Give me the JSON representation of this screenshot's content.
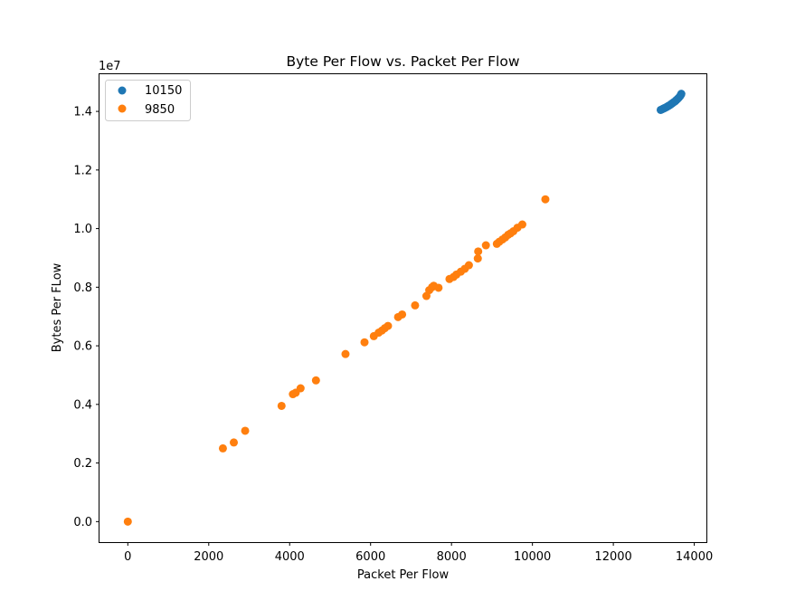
{
  "chart_data": {
    "type": "scatter",
    "title": "Byte Per Flow vs. Packet Per Flow",
    "xlabel": "Packet Per Flow",
    "ylabel": "Bytes Per FLow",
    "y_offset_label": "1e7",
    "y_scale_factor": 10000000,
    "xlim": [
      -700,
      14300
    ],
    "ylim": [
      -700000,
      15300000
    ],
    "xticks": [
      0,
      2000,
      4000,
      6000,
      8000,
      10000,
      12000,
      14000
    ],
    "xtick_labels": [
      "0",
      "2000",
      "4000",
      "6000",
      "8000",
      "10000",
      "12000",
      "14000"
    ],
    "yticks": [
      0,
      2000000,
      4000000,
      6000000,
      8000000,
      10000000,
      12000000,
      14000000
    ],
    "ytick_labels": [
      "0.0",
      "0.2",
      "0.4",
      "0.6",
      "0.8",
      "1.0",
      "1.2",
      "1.4"
    ],
    "grid": false,
    "legend_position": "top-left",
    "series": [
      {
        "name": "10150",
        "color": "#1f77b4",
        "points": [
          [
            13170,
            14050000
          ],
          [
            13200,
            14070000
          ],
          [
            13230,
            14090000
          ],
          [
            13260,
            14110000
          ],
          [
            13290,
            14130000
          ],
          [
            13320,
            14150000
          ],
          [
            13350,
            14180000
          ],
          [
            13380,
            14200000
          ],
          [
            13410,
            14230000
          ],
          [
            13440,
            14260000
          ],
          [
            13470,
            14290000
          ],
          [
            13500,
            14320000
          ],
          [
            13530,
            14350000
          ],
          [
            13560,
            14390000
          ],
          [
            13590,
            14430000
          ],
          [
            13620,
            14470000
          ],
          [
            13650,
            14520000
          ],
          [
            13670,
            14570000
          ],
          [
            13680,
            14600000
          ]
        ]
      },
      {
        "name": "9850",
        "color": "#ff7f0e",
        "points": [
          [
            0,
            0
          ],
          [
            2350,
            2500000
          ],
          [
            2620,
            2700000
          ],
          [
            2900,
            3100000
          ],
          [
            3800,
            3950000
          ],
          [
            4080,
            4350000
          ],
          [
            4150,
            4400000
          ],
          [
            4270,
            4550000
          ],
          [
            4650,
            4820000
          ],
          [
            5380,
            5720000
          ],
          [
            5850,
            6120000
          ],
          [
            6080,
            6330000
          ],
          [
            6200,
            6450000
          ],
          [
            6280,
            6520000
          ],
          [
            6350,
            6600000
          ],
          [
            6430,
            6680000
          ],
          [
            6680,
            6980000
          ],
          [
            6780,
            7070000
          ],
          [
            7100,
            7380000
          ],
          [
            7380,
            7700000
          ],
          [
            7450,
            7900000
          ],
          [
            7520,
            8000000
          ],
          [
            7560,
            8050000
          ],
          [
            7680,
            7980000
          ],
          [
            7950,
            8280000
          ],
          [
            8050,
            8350000
          ],
          [
            8120,
            8430000
          ],
          [
            8230,
            8530000
          ],
          [
            8330,
            8630000
          ],
          [
            8430,
            8750000
          ],
          [
            8650,
            8980000
          ],
          [
            8660,
            9220000
          ],
          [
            8850,
            9430000
          ],
          [
            9120,
            9480000
          ],
          [
            9180,
            9550000
          ],
          [
            9260,
            9630000
          ],
          [
            9330,
            9700000
          ],
          [
            9400,
            9790000
          ],
          [
            9460,
            9840000
          ],
          [
            9530,
            9910000
          ],
          [
            9630,
            10030000
          ],
          [
            9750,
            10140000
          ],
          [
            10320,
            11000000
          ]
        ]
      }
    ]
  }
}
